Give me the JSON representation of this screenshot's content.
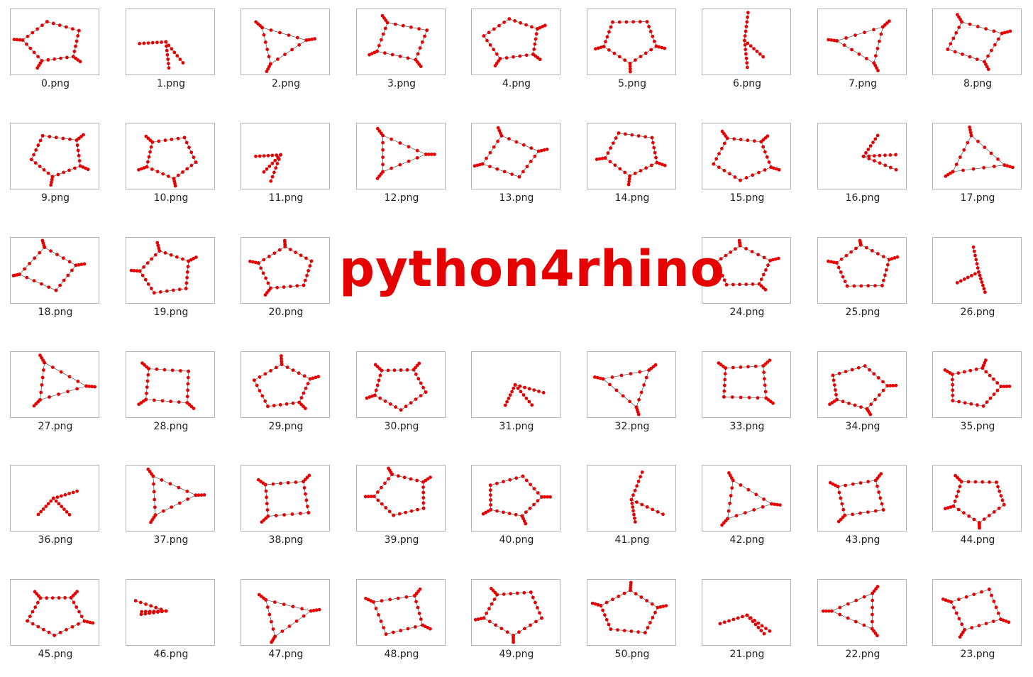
{
  "watermark": {
    "text": "python4rhino",
    "color": "#e60000"
  },
  "graph_style": {
    "node_color": "#e60000",
    "edge_color": "#333333"
  },
  "rows": [
    [
      "0.png",
      "1.png",
      "2.png",
      "3.png",
      "4.png",
      "5.png",
      "6.png",
      "7.png",
      "8.png"
    ],
    [
      "9.png",
      "10.png",
      "11.png",
      "12.png",
      "13.png",
      "14.png",
      "15.png",
      "16.png",
      "17.png"
    ],
    [
      "18.png",
      "19.png",
      "20.png",
      "",
      "",
      "",
      "24.png",
      "25.png",
      "26.png"
    ],
    [
      "27.png",
      "28.png",
      "29.png",
      "30.png",
      "31.png",
      "32.png",
      "33.png",
      "34.png",
      "35.png"
    ],
    [
      "36.png",
      "37.png",
      "38.png",
      "39.png",
      "40.png",
      "41.png",
      "42.png",
      "43.png",
      "44.png"
    ],
    [
      "45.png",
      "46.png",
      "47.png",
      "48.png",
      "49.png",
      "50.png",
      "21.png",
      "22.png",
      "23.png"
    ]
  ]
}
